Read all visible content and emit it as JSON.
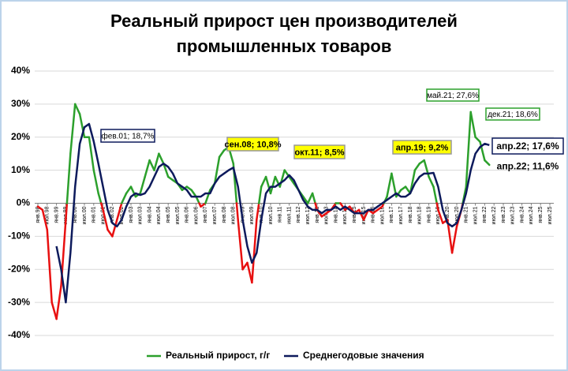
{
  "chart_data": {
    "type": "line",
    "title": [
      "Реальный прирост цен производителей",
      "промышленных товаров"
    ],
    "categories": [
      "янв.98",
      null,
      "июл.98",
      null,
      "янв.99",
      null,
      "июл.99",
      null,
      "янв.00",
      null,
      "июл.00",
      null,
      "янв.01",
      null,
      "июл.01",
      null,
      "янв.02",
      null,
      "июл.02",
      null,
      "янв.03",
      null,
      "июл.03",
      null,
      "янв.04",
      null,
      "июл.04",
      null,
      "янв.05",
      null,
      "июл.05",
      null,
      "янв.06",
      null,
      "июл.06",
      null,
      "янв.07",
      null,
      "июл.07",
      null,
      "янв.08",
      null,
      "июл.08",
      null,
      "янв.09",
      null,
      "июл.09",
      null,
      "янв.10",
      null,
      "июл.10",
      null,
      "янв.11",
      null,
      "июл.11",
      null,
      "янв.12",
      null,
      "июл.12",
      null,
      "янв.13",
      null,
      "июл.13",
      null,
      "янв.14",
      null,
      "июл.14",
      null,
      "янв.15",
      null,
      "июл.15",
      null,
      "янв.16",
      null,
      "июл.16",
      null,
      "янв.17",
      null,
      "июл.17",
      null,
      "янв.18",
      null,
      "июл.18",
      null,
      "янв.19",
      null,
      "июл.19",
      null,
      "янв.20",
      null,
      "июл.20",
      null,
      "янв.21",
      null,
      "июл.21",
      null,
      "янв.22",
      null,
      "июл.22",
      null,
      "янв.23",
      null,
      "июл.23",
      null,
      "янв.24",
      null,
      "июл.24",
      null,
      "янв.25",
      null,
      "июл.25",
      null
    ],
    "series": [
      {
        "name": "Реальный прирост, г/г",
        "color": "#2ca02c",
        "negative_color": "#e81010",
        "values": [
          -1,
          -2,
          -8,
          -30,
          -35,
          -25,
          -5,
          15,
          30,
          27,
          20,
          20,
          10,
          3,
          -2,
          -8,
          -10,
          -5,
          0,
          3,
          5,
          2,
          3,
          8,
          13,
          10,
          15,
          12,
          8,
          7,
          6,
          4,
          5,
          4,
          2,
          -1,
          0,
          4,
          6,
          14,
          16,
          17,
          12,
          -5,
          -20,
          -18,
          -24,
          -5,
          5,
          8,
          3,
          8,
          5,
          10,
          8,
          6,
          4,
          2,
          0,
          3,
          -2,
          -4,
          -3,
          -2,
          0,
          0,
          -2,
          -1,
          -3,
          -2,
          -5,
          -2,
          -3,
          -2,
          -1,
          2,
          9,
          2,
          4,
          5,
          3,
          10,
          12,
          13,
          8,
          5,
          -2,
          -6,
          -5,
          -15,
          -7,
          -2,
          5,
          27.6,
          20,
          18.6,
          13,
          11.6,
          null,
          null,
          null,
          null,
          null,
          null,
          null,
          null,
          null,
          null,
          null,
          null,
          null,
          null
        ]
      },
      {
        "name": "Среднегодовые значения",
        "color": "#0d1a5c",
        "values": [
          null,
          null,
          null,
          null,
          -13,
          -20,
          -30,
          -15,
          5,
          18,
          23,
          24,
          18.7,
          12,
          5,
          -2,
          -6,
          -7,
          -5,
          -1,
          2,
          3,
          2.5,
          3,
          5,
          8,
          11,
          12,
          11,
          9,
          6,
          5,
          4,
          2,
          2,
          2,
          3,
          3,
          6,
          8,
          9,
          10,
          10.8,
          5,
          -5,
          -13,
          -18,
          -15,
          -5,
          3,
          5,
          5,
          6,
          7,
          8.5,
          7,
          4,
          1,
          -1,
          -2,
          -2,
          -3,
          -2,
          -2,
          -1,
          -2,
          -1,
          -2,
          -3,
          -3,
          -3,
          -2,
          -2,
          -1,
          0,
          1,
          2,
          3,
          2,
          2,
          3,
          6,
          8,
          9,
          9,
          9.2,
          5,
          -2,
          -6,
          -7,
          -6,
          -2,
          3,
          10,
          15,
          17,
          18,
          17.6,
          null,
          null,
          null,
          null,
          null,
          null,
          null,
          null,
          null,
          null,
          null,
          null,
          null,
          null
        ]
      }
    ],
    "ylim": [
      -40,
      40
    ],
    "yticks": [
      {
        "value": -40,
        "label": "-40%"
      },
      {
        "value": -30,
        "label": "-30%"
      },
      {
        "value": -20,
        "label": "-20%"
      },
      {
        "value": -10,
        "label": "-10%"
      },
      {
        "value": 0,
        "label": "0%"
      },
      {
        "value": 10,
        "label": "10%"
      },
      {
        "value": 20,
        "label": "20%"
      },
      {
        "value": 30,
        "label": "30%"
      },
      {
        "value": 40,
        "label": "40%"
      }
    ],
    "grid": true,
    "annotations": [
      "фев.01; 18,7%",
      "сен.08; 10,8%",
      "окт.11; 8,5%",
      "апр.19; 9,2%",
      "май.21; 27,6%",
      "дек.21; 18,6%",
      "апр.22; 17,6%",
      "апр.22; 11,6%"
    ]
  }
}
